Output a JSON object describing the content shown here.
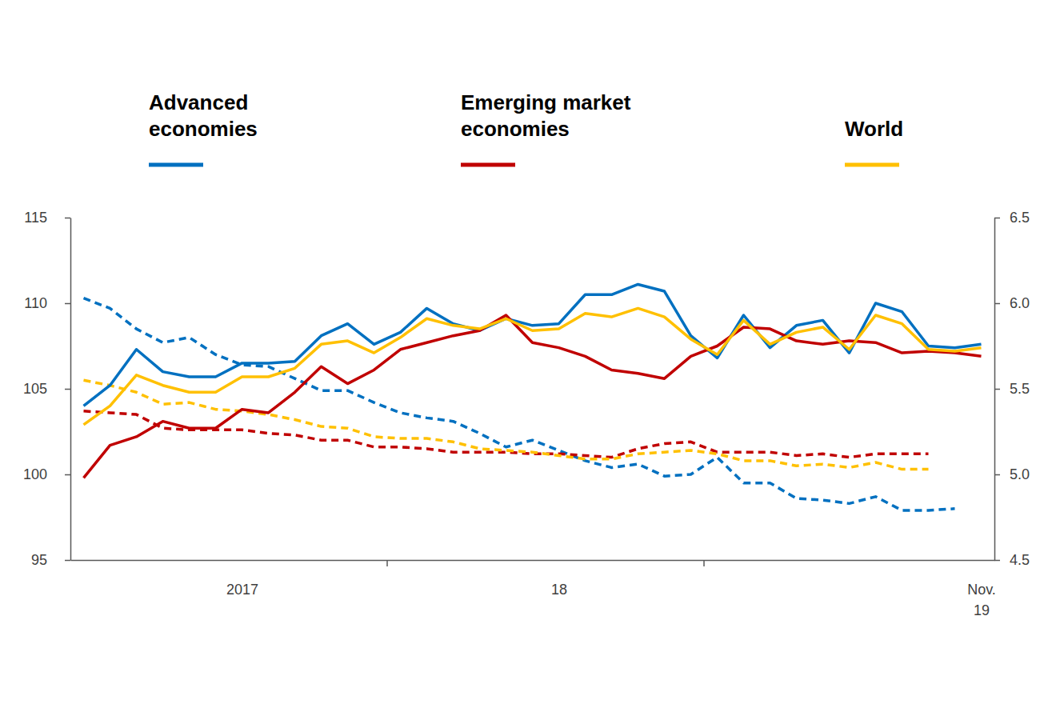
{
  "chart_data": {
    "type": "line",
    "categories": [
      null,
      null,
      null,
      null,
      null,
      null,
      "2017",
      null,
      null,
      null,
      null,
      null,
      null,
      null,
      null,
      null,
      null,
      null,
      "18",
      null,
      null,
      null,
      null,
      null,
      null,
      null,
      null,
      null,
      null,
      null,
      null,
      null,
      null,
      null,
      "Nov. 19"
    ],
    "series": [
      {
        "name": "Advanced economies",
        "color": "#0070C0",
        "line_style": "solid",
        "values": [
          104.0,
          105.2,
          107.3,
          106.0,
          105.7,
          105.7,
          106.5,
          106.5,
          106.6,
          108.1,
          108.8,
          107.6,
          108.3,
          109.7,
          108.8,
          108.4,
          109.1,
          108.7,
          108.8,
          110.5,
          110.5,
          111.1,
          110.7,
          108.1,
          106.8,
          109.3,
          107.4,
          108.7,
          109.0,
          107.1,
          110.0,
          109.5,
          107.5,
          107.4,
          107.6
        ]
      },
      {
        "name": "Emerging market economies",
        "color": "#C00000",
        "line_style": "solid",
        "values": [
          99.8,
          101.7,
          102.2,
          103.1,
          102.7,
          102.7,
          103.8,
          103.6,
          104.8,
          106.3,
          105.3,
          106.1,
          107.3,
          107.7,
          108.1,
          108.4,
          109.3,
          107.7,
          107.4,
          106.9,
          106.1,
          105.9,
          105.6,
          106.9,
          107.5,
          108.6,
          108.5,
          107.8,
          107.6,
          107.8,
          107.7,
          107.1,
          107.2,
          107.1,
          106.9
        ]
      },
      {
        "name": "World",
        "color": "#FFC000",
        "line_style": "solid",
        "values": [
          102.9,
          104.0,
          105.8,
          105.2,
          104.8,
          104.8,
          105.7,
          105.7,
          106.2,
          107.6,
          107.8,
          107.1,
          108.0,
          109.1,
          108.7,
          108.5,
          109.1,
          108.4,
          108.5,
          109.4,
          109.2,
          109.7,
          109.2,
          107.9,
          107.0,
          109.0,
          107.6,
          108.3,
          108.6,
          107.3,
          109.3,
          108.8,
          107.3,
          107.2,
          107.4
        ]
      },
      {
        "name": "Advanced economies",
        "color": "#0070C0",
        "line_style": "dashed",
        "axis": "y2",
        "values": [
          6.03,
          5.97,
          5.85,
          5.77,
          5.8,
          5.7,
          5.64,
          5.63,
          5.56,
          5.49,
          5.49,
          5.42,
          5.36,
          5.33,
          5.31,
          5.24,
          5.16,
          5.2,
          5.14,
          5.08,
          5.04,
          5.06,
          4.99,
          5.0,
          5.1,
          4.95,
          4.95,
          4.86,
          4.85,
          4.83,
          4.87,
          4.79,
          4.79,
          4.8,
          null
        ]
      },
      {
        "name": "Emerging market economies",
        "color": "#C00000",
        "line_style": "dashed",
        "axis": "y2",
        "values": [
          5.37,
          5.36,
          5.35,
          5.27,
          5.26,
          5.26,
          5.26,
          5.24,
          5.23,
          5.2,
          5.2,
          5.16,
          5.16,
          5.15,
          5.13,
          5.13,
          5.13,
          5.12,
          5.12,
          5.11,
          5.1,
          5.15,
          5.18,
          5.19,
          5.13,
          5.13,
          5.13,
          5.11,
          5.12,
          5.1,
          5.12,
          5.12,
          5.12,
          null,
          null
        ]
      },
      {
        "name": "World",
        "color": "#FFC000",
        "line_style": "dashed",
        "axis": "y2",
        "values": [
          5.55,
          5.52,
          5.48,
          5.41,
          5.42,
          5.38,
          5.37,
          5.35,
          5.32,
          5.28,
          5.27,
          5.22,
          5.21,
          5.21,
          5.19,
          5.15,
          5.14,
          5.13,
          5.11,
          5.09,
          5.09,
          5.12,
          5.13,
          5.14,
          5.12,
          5.08,
          5.08,
          5.05,
          5.06,
          5.04,
          5.07,
          5.03,
          5.03,
          null,
          null
        ]
      }
    ],
    "ylim": [
      95,
      115
    ],
    "yticks": [
      95,
      100,
      105,
      110,
      115
    ],
    "y2lim": [
      4.5,
      6.5
    ],
    "y2ticks": [
      4.5,
      {
        "value": 5,
        "label": "5.0"
      },
      5.5,
      {
        "value": 6,
        "label": "6.0"
      },
      6.5
    ]
  }
}
